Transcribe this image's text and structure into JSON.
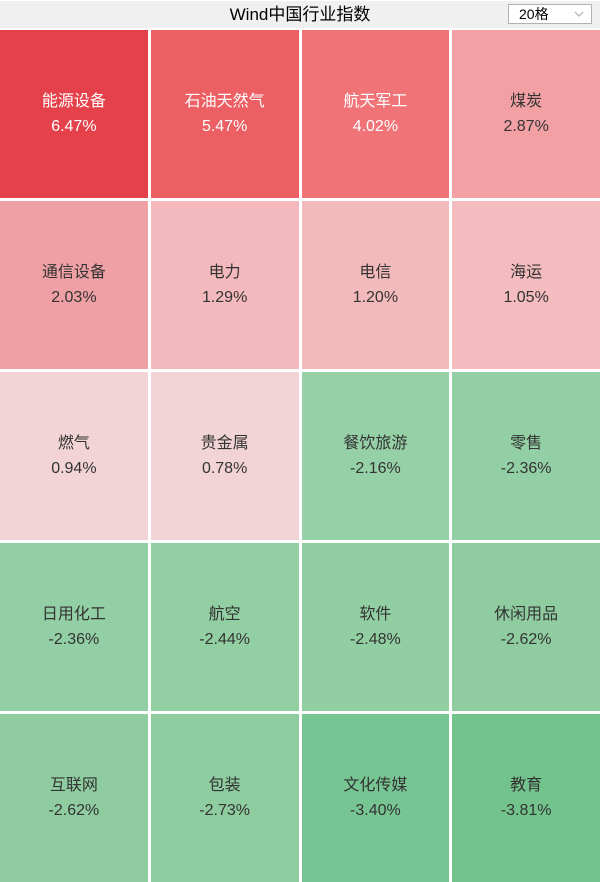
{
  "header": {
    "title": "Wind中国行业指数",
    "grid_selector": {
      "value": "20格"
    }
  },
  "colors": {
    "header_bg": "#f0f0f0",
    "gap": "#ffffff",
    "select_border": "#b2b2b2",
    "chevron": "#b8babc",
    "positive_strong": "#e4414a",
    "negative_strong": "#73c38d"
  },
  "chart_data": {
    "type": "heatmap",
    "title": "Wind中国行业指数",
    "columns": 4,
    "rows": 5,
    "unit": "percent daily change",
    "legend_position": "none",
    "cells": [
      {
        "name": "能源设备",
        "change": 6.47,
        "label": "6.47%",
        "color": "#e4414a",
        "text": "#ffffff"
      },
      {
        "name": "石油天然气",
        "change": 5.47,
        "label": "5.47%",
        "color": "#ec5f63",
        "text": "#ffffff"
      },
      {
        "name": "航天军工",
        "change": 4.02,
        "label": "4.02%",
        "color": "#f07377",
        "text": "#ffffff"
      },
      {
        "name": "煤炭",
        "change": 2.87,
        "label": "2.87%",
        "color": "#f2a0a4",
        "text": "#333333"
      },
      {
        "name": "通信设备",
        "change": 2.03,
        "label": "2.03%",
        "color": "#efa0a4",
        "text": "#333333"
      },
      {
        "name": "电力",
        "change": 1.29,
        "label": "1.29%",
        "color": "#f3b9bc",
        "text": "#333333"
      },
      {
        "name": "电信",
        "change": 1.2,
        "label": "1.20%",
        "color": "#f3babc",
        "text": "#333333"
      },
      {
        "name": "海运",
        "change": 1.05,
        "label": "1.05%",
        "color": "#f4bcbe",
        "text": "#333333"
      },
      {
        "name": "燃气",
        "change": 0.94,
        "label": "0.94%",
        "color": "#f2d4d6",
        "text": "#333333"
      },
      {
        "name": "贵金属",
        "change": 0.78,
        "label": "0.78%",
        "color": "#f2d4d6",
        "text": "#333333"
      },
      {
        "name": "餐饮旅游",
        "change": -2.16,
        "label": "-2.16%",
        "color": "#95d0a6",
        "text": "#333333"
      },
      {
        "name": "零售",
        "change": -2.36,
        "label": "-2.36%",
        "color": "#93cfa4",
        "text": "#333333"
      },
      {
        "name": "日用化工",
        "change": -2.36,
        "label": "-2.36%",
        "color": "#93cfa4",
        "text": "#333333"
      },
      {
        "name": "航空",
        "change": -2.44,
        "label": "-2.44%",
        "color": "#92cfa3",
        "text": "#333333"
      },
      {
        "name": "软件",
        "change": -2.48,
        "label": "-2.48%",
        "color": "#91cea2",
        "text": "#333333"
      },
      {
        "name": "休闲用品",
        "change": -2.62,
        "label": "-2.62%",
        "color": "#8fcda1",
        "text": "#333333"
      },
      {
        "name": "互联网",
        "change": -2.62,
        "label": "-2.62%",
        "color": "#8fcda1",
        "text": "#333333"
      },
      {
        "name": "包装",
        "change": -2.73,
        "label": "-2.73%",
        "color": "#8ecd9f",
        "text": "#333333"
      },
      {
        "name": "文化传媒",
        "change": -3.4,
        "label": "-3.40%",
        "color": "#77c592",
        "text": "#333333"
      },
      {
        "name": "教育",
        "change": -3.81,
        "label": "-3.81%",
        "color": "#73c38d",
        "text": "#333333"
      }
    ]
  }
}
